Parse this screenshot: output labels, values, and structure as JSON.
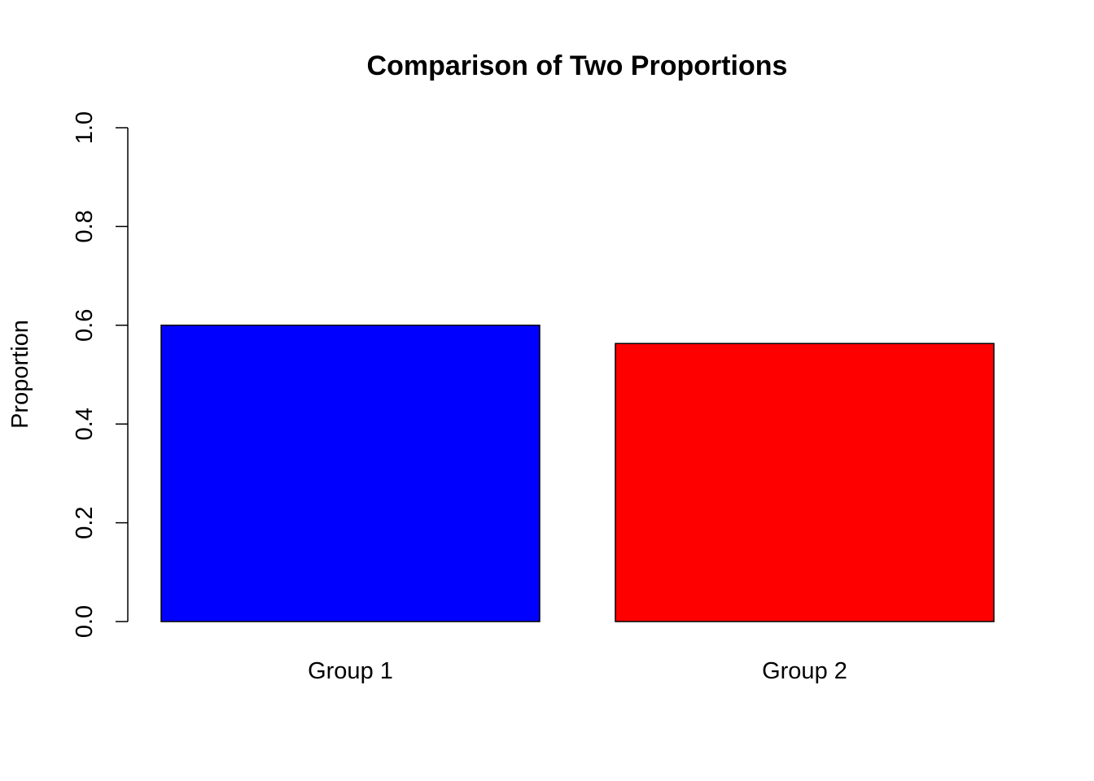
{
  "chart_data": {
    "type": "bar",
    "title": "Comparison of Two Proportions",
    "xlabel": "",
    "ylabel": "Proportion",
    "categories": [
      "Group 1",
      "Group 2"
    ],
    "values": [
      0.6,
      0.563
    ],
    "colors": [
      "#0000ff",
      "#ff0000"
    ],
    "ylim": [
      0,
      1
    ],
    "yticks": [
      "0.0",
      "0.2",
      "0.4",
      "0.6",
      "0.8",
      "1.0"
    ],
    "grid": false,
    "legend": "none"
  }
}
